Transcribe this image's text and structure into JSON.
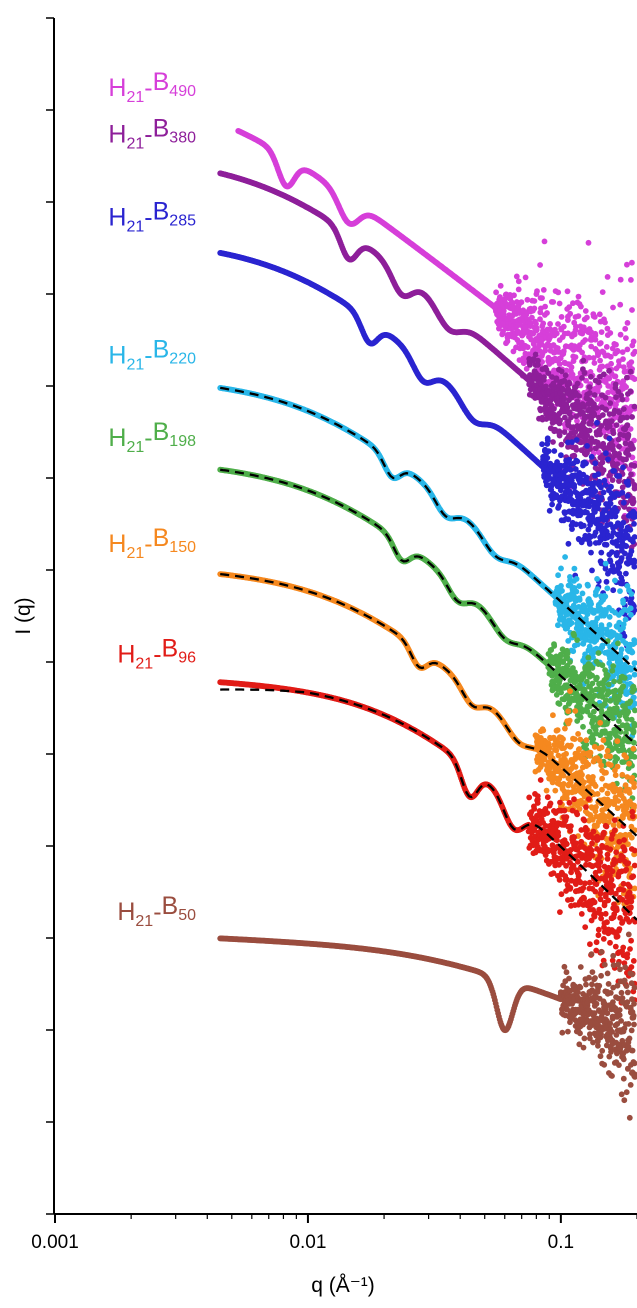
{
  "chart_data": {
    "type": "scatter",
    "title": "",
    "xlabel": "q (Å⁻¹)",
    "ylabel": "I (q)",
    "xscale": "log",
    "yscale": "log",
    "xlim": [
      0.001,
      0.2
    ],
    "x_ticks": [
      {
        "value": 0.001,
        "label": "0.001"
      },
      {
        "value": 0.01,
        "label": "0.01"
      },
      {
        "value": 0.1,
        "label": "0.1"
      }
    ],
    "y_tick_labels_shown": false,
    "y_decades": 13,
    "grid": false,
    "legend": "none (series labelled at left end of each curve)",
    "model_fit_style": "black dashed line",
    "series": [
      {
        "name": "H21-B490",
        "base": "H",
        "base_sub": "21",
        "sep": "-",
        "block": "B",
        "block_sub": "490",
        "color": "#d63fd9",
        "q_start": 0.0053,
        "log_I_start": 11.65,
        "dip_q": [
          0.0082,
          0.0145
        ],
        "amp": 0.32,
        "tail_slope": -2.0,
        "noise_from": 0.055,
        "fit": false
      },
      {
        "name": "H21-B380",
        "base": "H",
        "base_sub": "21",
        "sep": "-",
        "block": "B",
        "block_sub": "380",
        "color": "#8e1f9a",
        "q_start": 0.0045,
        "log_I_start": 10.95,
        "dip_q": [
          0.0145,
          0.0235,
          0.036
        ],
        "amp": 0.28,
        "tail_slope": -2.3,
        "noise_from": 0.075,
        "fit": false
      },
      {
        "name": "H21-B285",
        "base": "H",
        "base_sub": "21",
        "sep": "-",
        "block": "B",
        "block_sub": "285",
        "color": "#2a24d0",
        "q_start": 0.0045,
        "log_I_start": 10.05,
        "dip_q": [
          0.0175,
          0.0285,
          0.045
        ],
        "amp": 0.25,
        "tail_slope": -2.4,
        "noise_from": 0.085,
        "fit": false
      },
      {
        "name": "H21-B220",
        "base": "H",
        "base_sub": "21",
        "sep": "-",
        "block": "B",
        "block_sub": "220",
        "color": "#29b6e8",
        "q_start": 0.0045,
        "log_I_start": 8.55,
        "dip_q": [
          0.0215,
          0.035,
          0.055
        ],
        "amp": 0.2,
        "tail_slope": -2.4,
        "noise_from": 0.095,
        "fit": true
      },
      {
        "name": "H21-B198",
        "base": "H",
        "base_sub": "21",
        "sep": "-",
        "block": "B",
        "block_sub": "198",
        "color": "#4fae4a",
        "q_start": 0.0045,
        "log_I_start": 7.65,
        "dip_q": [
          0.0235,
          0.039,
          0.06
        ],
        "amp": 0.2,
        "tail_slope": -2.4,
        "noise_from": 0.09,
        "fit": true
      },
      {
        "name": "H21-B150",
        "base": "H",
        "base_sub": "21",
        "sep": "-",
        "block": "B",
        "block_sub": "150",
        "color": "#f5881f",
        "q_start": 0.0045,
        "log_I_start": 6.5,
        "dip_q": [
          0.0275,
          0.0445,
          0.068
        ],
        "amp": 0.2,
        "tail_slope": -2.4,
        "noise_from": 0.08,
        "fit": true
      },
      {
        "name": "H21-B96",
        "base": "H",
        "base_sub": "21",
        "sep": "-",
        "block": "B",
        "block_sub": "96",
        "color": "#e11c17",
        "q_start": 0.0045,
        "log_I_start": 5.3,
        "dip_q": [
          0.0435,
          0.065
        ],
        "amp": 0.32,
        "tail_slope": -2.6,
        "noise_from": 0.075,
        "fit": true
      },
      {
        "name": "H21-B50",
        "base": "H",
        "base_sub": "21",
        "sep": "-",
        "block": "B",
        "block_sub": "50",
        "color": "#9a4d3f",
        "q_start": 0.0045,
        "log_I_start": 2.5,
        "dip_q": [
          0.06
        ],
        "amp": 0.55,
        "tail_slope": -1.0,
        "noise_from": 0.1,
        "fit": false
      }
    ]
  }
}
